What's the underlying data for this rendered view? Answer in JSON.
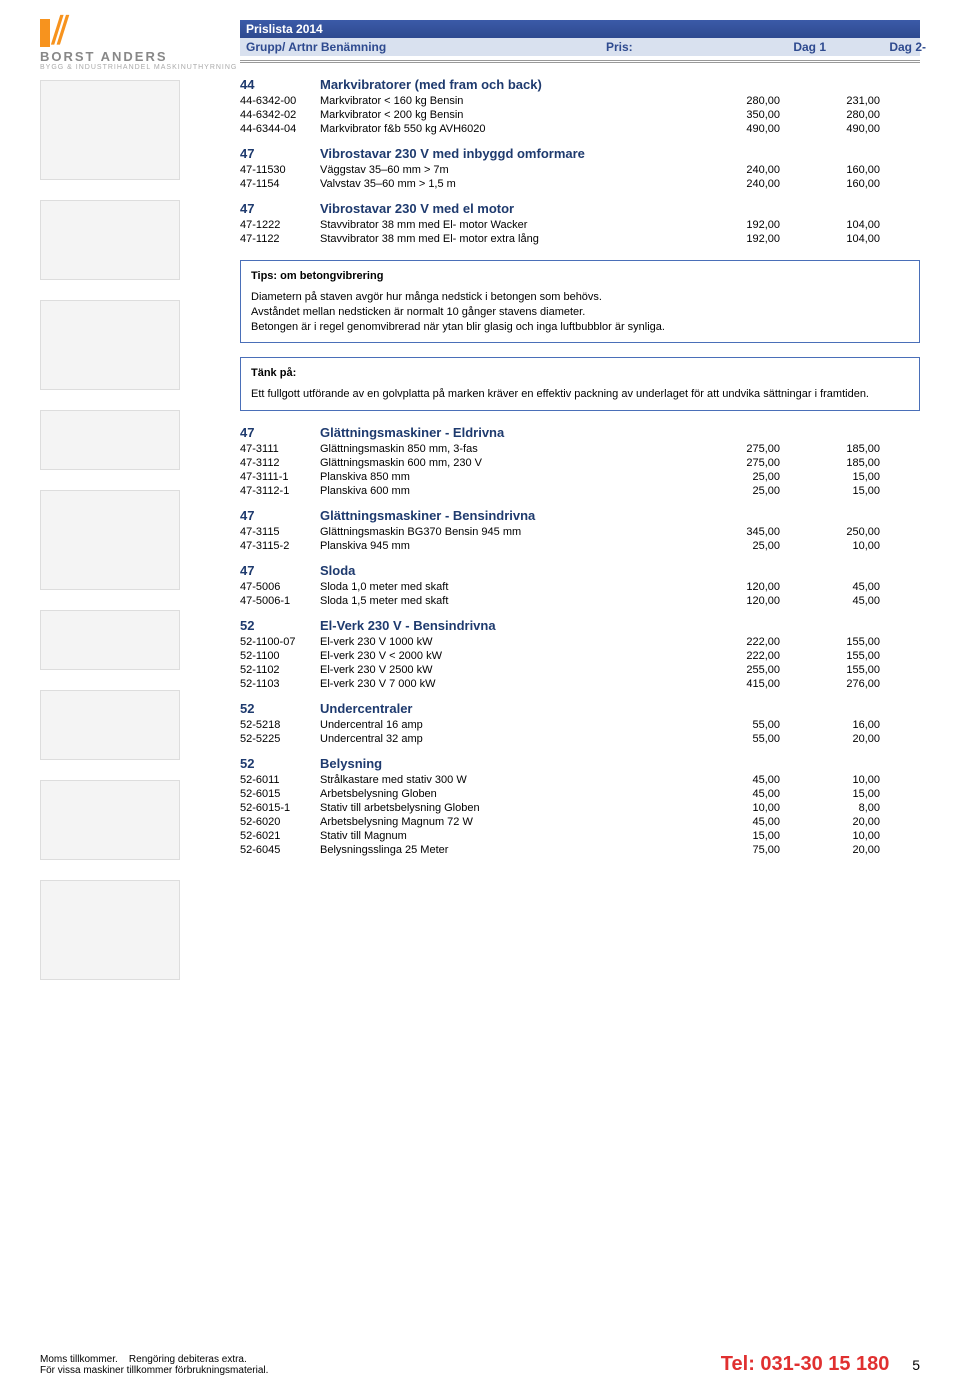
{
  "header": {
    "prislista": "Prislista 2014",
    "col_group": "Grupp/ Artnr Benämning",
    "col_pris": "Pris:",
    "col_dag1": "Dag 1",
    "col_dag2": "Dag 2-"
  },
  "logo": {
    "title": "BORST ANDERS",
    "sub": "BYGG & INDUSTRIHANDEL   MASKINUTHYRNING"
  },
  "sections": [
    {
      "num": "44",
      "title": "Markvibratorer (med fram och back)",
      "rows": [
        [
          "44-6342-00",
          "Markvibrator < 160 kg Bensin",
          "280,00",
          "231,00"
        ],
        [
          "44-6342-02",
          "Markvibrator < 200 kg Bensin",
          "350,00",
          "280,00"
        ],
        [
          "44-6344-04",
          "Markvibrator f&b 550 kg AVH6020",
          "490,00",
          "490,00"
        ]
      ]
    },
    {
      "num": "47",
      "title": "Vibrostavar 230 V med inbyggd omformare",
      "rows": [
        [
          "47-11530",
          "Väggstav 35–60 mm > 7m",
          "240,00",
          "160,00"
        ],
        [
          "47-1154",
          "Valvstav 35–60 mm > 1,5 m",
          "240,00",
          "160,00"
        ]
      ]
    },
    {
      "num": "47",
      "title": "Vibrostavar 230 V med el motor",
      "rows": [
        [
          "47-1222",
          "Stavvibrator 38 mm med El- motor Wacker",
          "192,00",
          "104,00"
        ],
        [
          "47-1122",
          "Stavvibrator 38 mm med El- motor extra lång",
          "192,00",
          "104,00"
        ]
      ]
    }
  ],
  "tip1": {
    "title": "Tips: om betongvibrering",
    "lines": [
      "Diametern på staven avgör hur många nedstick i betongen som behövs.",
      "Avståndet mellan nedsticken är normalt 10 gånger stavens diameter.",
      "Betongen är i regel genomvibrerad när ytan blir glasig och inga luftbubblor är synliga."
    ]
  },
  "tip2": {
    "title": "Tänk på:",
    "lines": [
      "Ett fullgott utförande av en golvplatta på marken kräver en effektiv packning av underlaget för att undvika sättningar i framtiden."
    ]
  },
  "sections2": [
    {
      "num": "47",
      "title": "Glättningsmaskiner - Eldrivna",
      "rows": [
        [
          "47-3111",
          "Glättningsmaskin 850 mm, 3-fas",
          "275,00",
          "185,00"
        ],
        [
          "47-3112",
          "Glättningsmaskin 600 mm, 230 V",
          "275,00",
          "185,00"
        ],
        [
          "47-3111-1",
          "Planskiva 850 mm",
          "25,00",
          "15,00"
        ],
        [
          "47-3112-1",
          "Planskiva 600 mm",
          "25,00",
          "15,00"
        ]
      ]
    },
    {
      "num": "47",
      "title": "Glättningsmaskiner - Bensindrivna",
      "rows": [
        [
          "47-3115",
          "Glättningsmaskin BG370 Bensin 945 mm",
          "345,00",
          "250,00"
        ],
        [
          "47-3115-2",
          "Planskiva 945 mm",
          "25,00",
          "10,00"
        ]
      ]
    },
    {
      "num": "47",
      "title": "Sloda",
      "rows": [
        [
          "47-5006",
          "Sloda 1,0 meter med skaft",
          "120,00",
          "45,00"
        ],
        [
          "47-5006-1",
          "Sloda 1,5 meter med skaft",
          "120,00",
          "45,00"
        ]
      ]
    },
    {
      "num": "52",
      "title": "El-Verk 230 V - Bensindrivna",
      "rows": [
        [
          "52-1100-07",
          "El-verk 230 V  1000 kW",
          "222,00",
          "155,00"
        ],
        [
          "52-1100",
          "El-verk 230 V < 2000 kW",
          "222,00",
          "155,00"
        ],
        [
          "52-1102",
          "El-verk 230 V  2500 kW",
          "255,00",
          "155,00"
        ],
        [
          "52-1103",
          "El-verk 230 V  7 000 kW",
          "415,00",
          "276,00"
        ]
      ]
    },
    {
      "num": "52",
      "title": "Undercentraler",
      "rows": [
        [
          "52-5218",
          "Undercentral 16 amp",
          "55,00",
          "16,00"
        ],
        [
          "52-5225",
          "Undercentral 32 amp",
          "55,00",
          "20,00"
        ]
      ]
    },
    {
      "num": "52",
      "title": "Belysning",
      "rows": [
        [
          "52-6011",
          "Strålkastare med stativ 300 W",
          "45,00",
          "10,00"
        ],
        [
          "52-6015",
          "Arbetsbelysning Globen",
          "45,00",
          "15,00"
        ],
        [
          "52-6015-1",
          "Stativ till arbetsbelysning Globen",
          "10,00",
          "8,00"
        ],
        [
          "52-6020",
          "Arbetsbelysning Magnum 72 W",
          "45,00",
          "20,00"
        ],
        [
          "52-6021",
          "Stativ till Magnum",
          "15,00",
          "10,00"
        ],
        [
          "52-6045",
          "Belysningsslinga 25 Meter",
          "75,00",
          "20,00"
        ]
      ]
    }
  ],
  "footer": {
    "l1": "Moms tillkommer.",
    "l1b": "Rengöring debiteras extra.",
    "l2": "För vissa maskiner tillkommer förbrukningsmaterial.",
    "tel": "Tel: 031-30 15 180",
    "page": "5"
  },
  "placeholders": [
    "",
    "",
    "",
    "",
    "",
    "",
    "",
    "",
    ""
  ]
}
